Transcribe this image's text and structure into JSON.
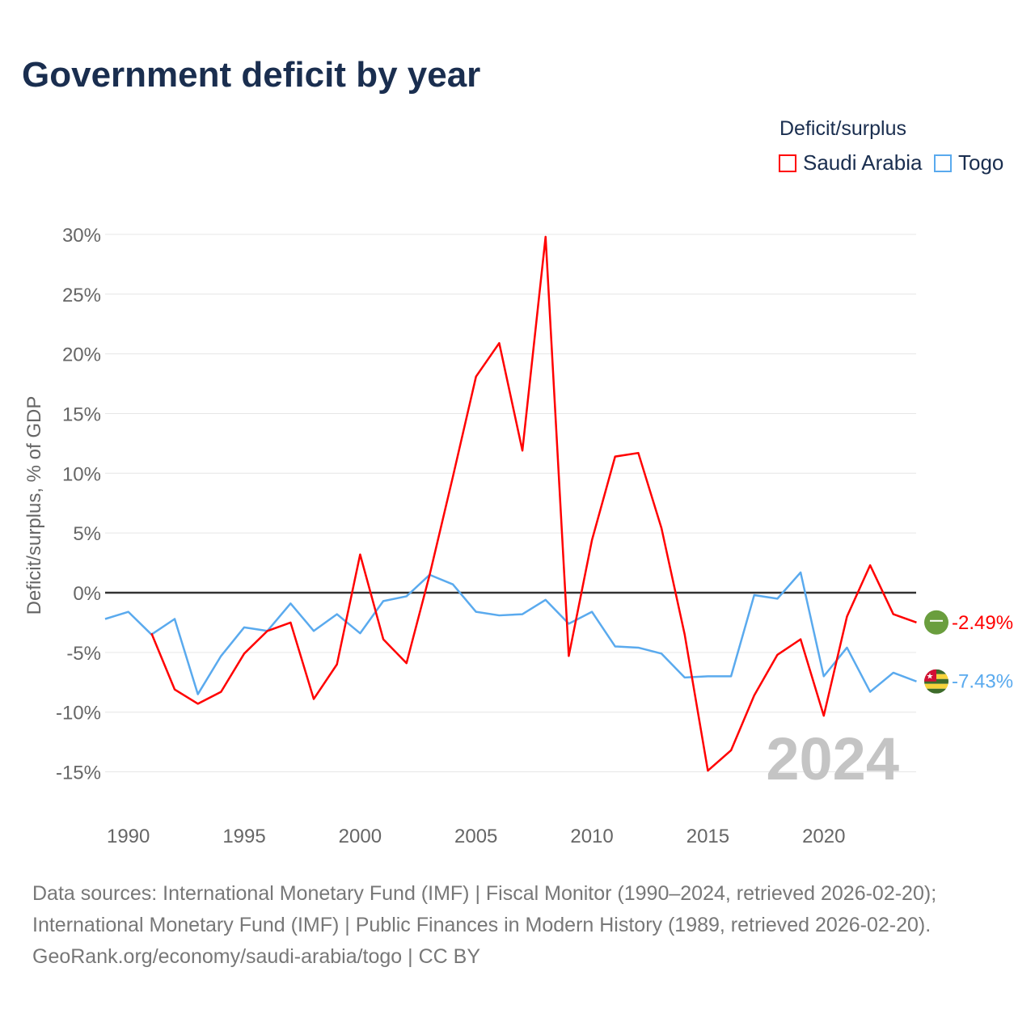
{
  "title": "Government deficit by year",
  "legend": {
    "title": "Deficit/surplus",
    "items": [
      "Saudi Arabia",
      "Togo"
    ]
  },
  "colors": {
    "Saudi Arabia": "#ff0000",
    "Togo": "#5aaaee"
  },
  "watermark_year": "2024",
  "sources": [
    "Data sources: International Monetary Fund (IMF) | Fiscal Monitor (1990–2024, retrieved 2026-02-20);",
    "International Monetary Fund (IMF) | Public Finances in Modern History (1989, retrieved 2026-02-20).",
    "GeoRank.org/economy/saudi-arabia/togo | CC BY"
  ],
  "chart_data": {
    "type": "line",
    "title": "Government deficit by year",
    "ylabel": "Deficit/surplus, % of GDP",
    "xlabel": "",
    "ylim": [
      -15,
      30
    ],
    "xlim": [
      1989,
      2024
    ],
    "yticks": [
      30,
      25,
      20,
      15,
      10,
      5,
      0,
      -5,
      -10,
      -15
    ],
    "ytick_labels": [
      "30%",
      "25%",
      "20%",
      "15%",
      "10%",
      "5%",
      "0%",
      "-5%",
      "-10%",
      "-15%"
    ],
    "xticks": [
      1990,
      1995,
      2000,
      2005,
      2010,
      2015,
      2020
    ],
    "series": [
      {
        "name": "Saudi Arabia",
        "end_label": "-2.49%",
        "icon": "saudi-arabia-flag-icon",
        "x": [
          1991,
          1992,
          1993,
          1994,
          1995,
          1996,
          1997,
          1998,
          1999,
          2000,
          2001,
          2002,
          2003,
          2004,
          2005,
          2006,
          2007,
          2008,
          2009,
          2010,
          2011,
          2012,
          2013,
          2014,
          2015,
          2016,
          2017,
          2018,
          2019,
          2020,
          2021,
          2022,
          2023,
          2024
        ],
        "values": [
          -3.4,
          -8.1,
          -9.3,
          -8.3,
          -5.1,
          -3.2,
          -2.5,
          -8.9,
          -6.0,
          3.2,
          -3.9,
          -5.9,
          1.5,
          9.7,
          18.1,
          20.9,
          11.9,
          29.8,
          -5.3,
          4.4,
          11.4,
          11.7,
          5.4,
          -3.5,
          -14.9,
          -13.2,
          -8.6,
          -5.2,
          -3.9,
          -10.3,
          -2.0,
          2.3,
          -1.8,
          -2.49
        ]
      },
      {
        "name": "Togo",
        "end_label": "-7.43%",
        "icon": "togo-flag-icon",
        "x": [
          1989,
          1990,
          1991,
          1992,
          1993,
          1994,
          1995,
          1996,
          1997,
          1998,
          1999,
          2000,
          2001,
          2002,
          2003,
          2004,
          2005,
          2006,
          2007,
          2008,
          2009,
          2010,
          2011,
          2012,
          2013,
          2014,
          2015,
          2016,
          2017,
          2018,
          2019,
          2020,
          2021,
          2022,
          2023,
          2024
        ],
        "values": [
          -2.2,
          -1.6,
          -3.5,
          -2.2,
          -8.5,
          -5.3,
          -2.9,
          -3.2,
          -0.9,
          -3.2,
          -1.8,
          -3.4,
          -0.7,
          -0.3,
          1.5,
          0.7,
          -1.6,
          -1.9,
          -1.8,
          -0.6,
          -2.6,
          -1.6,
          -4.5,
          -4.6,
          -5.1,
          -7.1,
          -7.0,
          -7.0,
          -0.2,
          -0.5,
          1.7,
          -7.0,
          -4.6,
          -8.3,
          -6.7,
          -7.43
        ]
      }
    ]
  }
}
